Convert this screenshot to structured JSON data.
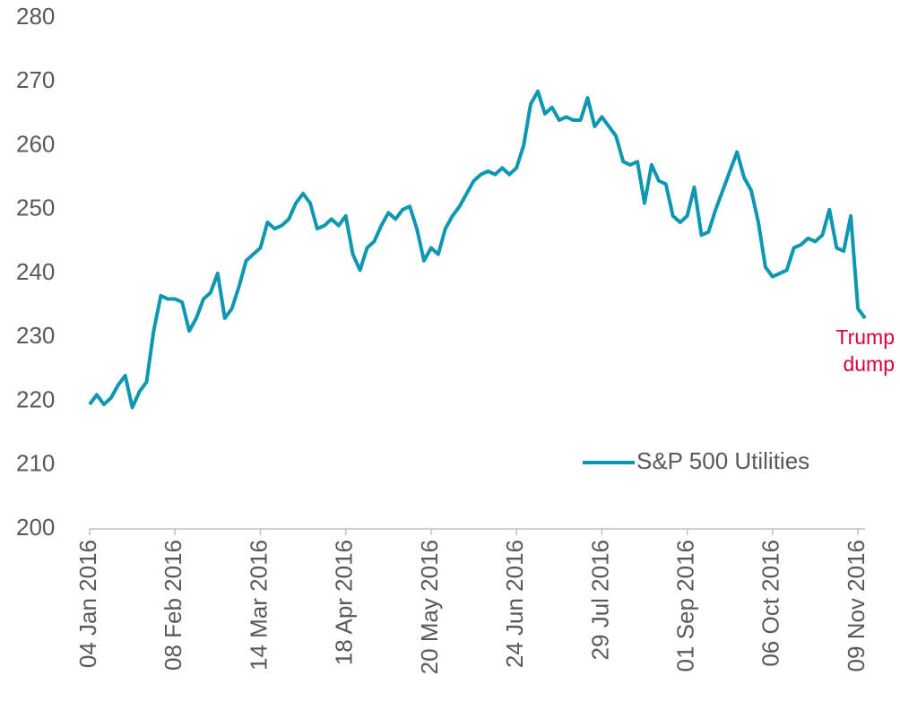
{
  "chart_data": {
    "type": "line",
    "categories": [
      "04 Jan 2016",
      null,
      null,
      null,
      null,
      null,
      null,
      null,
      null,
      null,
      null,
      null,
      "08 Feb 2016",
      null,
      null,
      null,
      null,
      null,
      null,
      null,
      null,
      null,
      null,
      null,
      "14 Mar 2016",
      null,
      null,
      null,
      null,
      null,
      null,
      null,
      null,
      null,
      null,
      null,
      "18 Apr 2016",
      null,
      null,
      null,
      null,
      null,
      null,
      null,
      null,
      null,
      null,
      null,
      "20 May 2016",
      null,
      null,
      null,
      null,
      null,
      null,
      null,
      null,
      null,
      null,
      null,
      "24 Jun 2016",
      null,
      null,
      null,
      null,
      null,
      null,
      null,
      null,
      null,
      null,
      null,
      "29 Jul 2016",
      null,
      null,
      null,
      null,
      null,
      null,
      null,
      null,
      null,
      null,
      null,
      "01 Sep 2016",
      null,
      null,
      null,
      null,
      null,
      null,
      null,
      null,
      null,
      null,
      null,
      "06 Oct 2016",
      null,
      null,
      null,
      null,
      null,
      null,
      null,
      null,
      null,
      null,
      null,
      "09 Nov 2016",
      null
    ],
    "series": [
      {
        "name": "S&P 500 Utilities",
        "color": "#0e97b0",
        "values": [
          219.5,
          221,
          219.5,
          220.5,
          222.5,
          224,
          219,
          221.5,
          223,
          231,
          236.5,
          236,
          236,
          235.5,
          231,
          233,
          236,
          237,
          240,
          233,
          234.5,
          238,
          242,
          243,
          244,
          248,
          247,
          247.5,
          248.5,
          251,
          252.5,
          251,
          247,
          247.5,
          248.5,
          247.5,
          249,
          243,
          240.5,
          244,
          245,
          247.5,
          249.5,
          248.5,
          250,
          250.5,
          247,
          242,
          244,
          243,
          247,
          249,
          250.5,
          252.5,
          254.5,
          255.5,
          256,
          255.5,
          256.5,
          255.5,
          256.5,
          260,
          266.5,
          268.5,
          265,
          266,
          264,
          264.5,
          264,
          264,
          267.5,
          263,
          264.5,
          263,
          261.5,
          257.5,
          257,
          257.5,
          251,
          257,
          254.5,
          254,
          249,
          248,
          249,
          253.5,
          246,
          246.5,
          250,
          253,
          256,
          259,
          255,
          253,
          248,
          241,
          239.5,
          240,
          240.5,
          244,
          244.5,
          245.5,
          245,
          246,
          250,
          244,
          243.5,
          249,
          234.5,
          233
        ]
      }
    ],
    "ylim": [
      200,
      280
    ],
    "yticks": [
      200,
      210,
      220,
      230,
      240,
      250,
      260,
      270,
      280
    ],
    "grid": false,
    "legend": "lower right",
    "annotation": {
      "lines": [
        "Trump",
        "dump"
      ],
      "color": "#d9003c"
    }
  }
}
